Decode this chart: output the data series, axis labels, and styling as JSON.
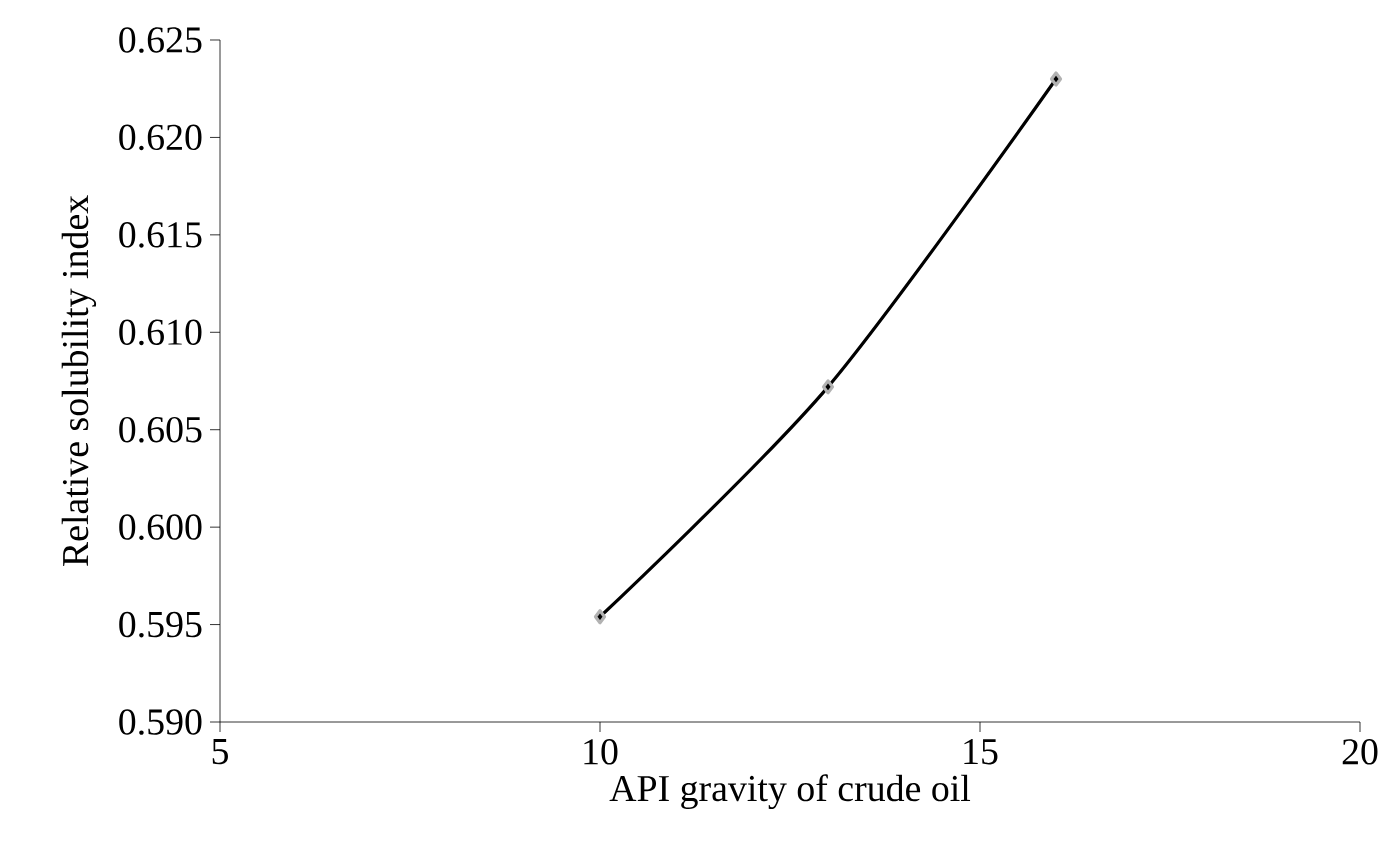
{
  "chart_data": {
    "type": "line",
    "xlabel": "API  gravity of crude oil",
    "ylabel": "Relative solubility index",
    "x": [
      10,
      13,
      16
    ],
    "series": [
      {
        "color": "#000000",
        "values": [
          0.5954,
          0.6072,
          0.623
        ]
      }
    ],
    "xlim": [
      5,
      20
    ],
    "xticks": [
      5,
      10,
      15,
      20
    ],
    "ylim": [
      0.59,
      0.625
    ],
    "yticks": [
      {
        "value": 0.59,
        "label": "0.590"
      },
      {
        "value": 0.595,
        "label": "0.595"
      },
      {
        "value": 0.6,
        "label": "0.600"
      },
      {
        "value": 0.605,
        "label": "0.605"
      },
      {
        "value": 0.61,
        "label": "0.610"
      },
      {
        "value": 0.615,
        "label": "0.615"
      },
      {
        "value": 0.62,
        "label": "0.620"
      },
      {
        "value": 0.625,
        "label": "0.625"
      }
    ],
    "marker": "diamond",
    "line_style": "solid"
  }
}
